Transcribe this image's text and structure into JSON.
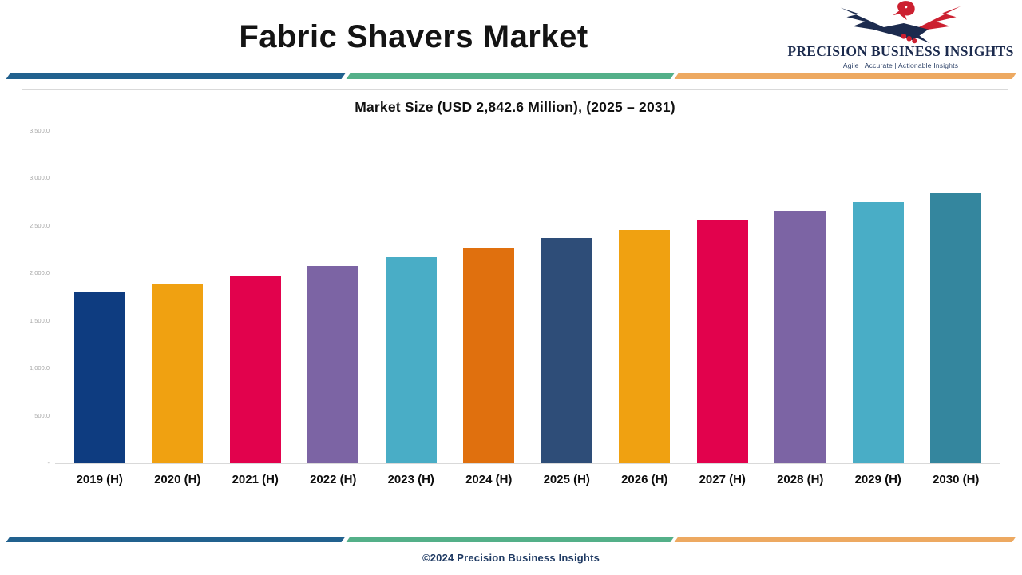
{
  "page": {
    "title": "Fabric Shavers Market",
    "footer_text": "©2024 Precision Business Insights"
  },
  "logo": {
    "name": "PRECISION BUSINESS INSIGHTS",
    "tagline": "Agile | Accurate | Actionable Insights"
  },
  "chart_data": {
    "type": "bar",
    "title": "Market Size (USD 2,842.6 Million), (2025 – 2031)",
    "unit": "USD Million",
    "categories": [
      "2019 (H)",
      "2020 (H)",
      "2021 (H)",
      "2022 (H)",
      "2023 (H)",
      "2024 (H)",
      "2025 (H)",
      "2026 (H)",
      "2027 (H)",
      "2028 (H)",
      "2029 (H)",
      "2030 (H)"
    ],
    "values": [
      1800,
      1895,
      1980,
      2080,
      2170,
      2270,
      2375,
      2455,
      2565,
      2660,
      2755,
      2842.6
    ],
    "bar_colors": [
      "#0e3c80",
      "#f0a111",
      "#e2024d",
      "#7c64a4",
      "#49adc6",
      "#e0700e",
      "#2e4d78",
      "#f0a111",
      "#e2024d",
      "#7c64a4",
      "#49adc6",
      "#34869e"
    ],
    "ylim": [
      0,
      3500
    ],
    "y_ticks": [
      {
        "label": "3,500.0",
        "value": 3500
      },
      {
        "label": "3,000.0",
        "value": 3000
      },
      {
        "label": "2,500.0",
        "value": 2500
      },
      {
        "label": "2,000.0",
        "value": 2000
      },
      {
        "label": "1,500.0",
        "value": 1500
      },
      {
        "label": "1,000.0",
        "value": 1000
      },
      {
        "label": "500.0",
        "value": 500
      },
      {
        "label": "-",
        "value": 0
      }
    ],
    "grid": false,
    "legend": false
  },
  "theme": {
    "divider_blue": "#21618e",
    "divider_green": "#54b089",
    "divider_orange": "#eda961",
    "logo_navy": "#1c2b4e",
    "logo_red": "#cc2030",
    "footer_color": "#1f3a63",
    "axis_label_color": "#a6a6a6",
    "border_color": "#d9d9d9"
  }
}
